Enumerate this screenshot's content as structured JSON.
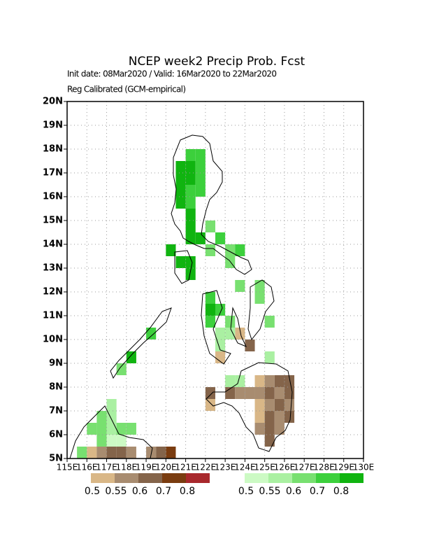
{
  "chart_data": {
    "type": "map",
    "title": "NCEP week2 Precip Prob. Fcst",
    "subtitle": "Init date: 08Mar2020 / Valid: 16Mar2020 to 22Mar2020",
    "subtitle2": "Reg Calibrated (GCM-empirical)",
    "xlim": [
      115,
      130
    ],
    "ylim": [
      5,
      20
    ],
    "cell_size": 0.5,
    "grid": true,
    "xticks": [
      {
        "value": 115,
        "label": "115E"
      },
      {
        "value": 116,
        "label": "116E"
      },
      {
        "value": 117,
        "label": "117E"
      },
      {
        "value": 118,
        "label": "118E"
      },
      {
        "value": 119,
        "label": "119E"
      },
      {
        "value": 120,
        "label": "120E"
      },
      {
        "value": 121,
        "label": "121E"
      },
      {
        "value": 122,
        "label": "122E"
      },
      {
        "value": 123,
        "label": "123E"
      },
      {
        "value": 124,
        "label": "124E"
      },
      {
        "value": 125,
        "label": "125E"
      },
      {
        "value": 126,
        "label": "126E"
      },
      {
        "value": 127,
        "label": "127E"
      },
      {
        "value": 128,
        "label": "128E"
      },
      {
        "value": 129,
        "label": "129E"
      },
      {
        "value": 130,
        "label": "130E"
      }
    ],
    "yticks": [
      {
        "value": 5,
        "label": "5N"
      },
      {
        "value": 6,
        "label": "6N"
      },
      {
        "value": 7,
        "label": "7N"
      },
      {
        "value": 8,
        "label": "8N"
      },
      {
        "value": 9,
        "label": "9N"
      },
      {
        "value": 10,
        "label": "10N"
      },
      {
        "value": 11,
        "label": "11N"
      },
      {
        "value": 12,
        "label": "12N"
      },
      {
        "value": 13,
        "label": "13N"
      },
      {
        "value": 14,
        "label": "14N"
      },
      {
        "value": 15,
        "label": "15N"
      },
      {
        "value": 16,
        "label": "16N"
      },
      {
        "value": 17,
        "label": "17N"
      },
      {
        "value": 18,
        "label": "18N"
      },
      {
        "value": 19,
        "label": "19N"
      },
      {
        "value": 20,
        "label": "20N"
      }
    ],
    "below_levels": [
      0.5,
      0.55,
      0.6,
      0.7,
      0.8
    ],
    "below_colors": [
      "#d9b787",
      "#a88c70",
      "#84644a",
      "#7a3c10",
      "#a8282c"
    ],
    "above_levels": [
      0.5,
      0.55,
      0.6,
      0.7,
      0.8
    ],
    "above_colors": [
      "#ccfac4",
      "#aaf0a2",
      "#78e070",
      "#3cd03c",
      "#10b410"
    ],
    "above_cells": [
      [
        121.0,
        17.5,
        0.7
      ],
      [
        121.5,
        17.5,
        0.7
      ],
      [
        120.5,
        17.0,
        0.8
      ],
      [
        121.0,
        17.0,
        0.8
      ],
      [
        121.5,
        17.0,
        0.7
      ],
      [
        120.5,
        16.5,
        0.8
      ],
      [
        121.0,
        16.5,
        0.8
      ],
      [
        121.5,
        16.5,
        0.7
      ],
      [
        120.5,
        16.0,
        0.8
      ],
      [
        121.0,
        16.0,
        0.7
      ],
      [
        121.5,
        16.0,
        0.7
      ],
      [
        120.5,
        15.5,
        0.8
      ],
      [
        121.0,
        15.5,
        0.7
      ],
      [
        121.0,
        15.0,
        0.8
      ],
      [
        121.0,
        14.5,
        0.8
      ],
      [
        121.0,
        14.0,
        0.8
      ],
      [
        121.5,
        14.0,
        0.8
      ],
      [
        122.0,
        14.5,
        0.6
      ],
      [
        122.5,
        14.0,
        0.7
      ],
      [
        120.0,
        13.5,
        0.8
      ],
      [
        120.5,
        13.0,
        0.8
      ],
      [
        121.0,
        13.0,
        0.8
      ],
      [
        121.0,
        12.5,
        0.8
      ],
      [
        122.0,
        13.5,
        0.6
      ],
      [
        123.0,
        13.5,
        0.6
      ],
      [
        123.5,
        13.5,
        0.7
      ],
      [
        123.0,
        13.0,
        0.6
      ],
      [
        123.5,
        12.0,
        0.6
      ],
      [
        124.5,
        12.0,
        0.6
      ],
      [
        124.5,
        11.5,
        0.6
      ],
      [
        122.0,
        11.5,
        0.7
      ],
      [
        122.0,
        11.0,
        0.8
      ],
      [
        122.5,
        11.0,
        0.7
      ],
      [
        122.0,
        10.5,
        0.7
      ],
      [
        123.0,
        10.5,
        0.6
      ],
      [
        125.0,
        10.5,
        0.6
      ],
      [
        122.5,
        10.0,
        0.55
      ],
      [
        123.0,
        10.0,
        0.55
      ],
      [
        122.5,
        9.5,
        0.55
      ],
      [
        125.0,
        9.0,
        0.55
      ],
      [
        118.0,
        9.0,
        0.8
      ],
      [
        117.5,
        8.5,
        0.6
      ],
      [
        119.0,
        10.0,
        0.7
      ],
      [
        123.0,
        8.0,
        0.55
      ],
      [
        123.5,
        8.0,
        0.55
      ],
      [
        116.5,
        6.5,
        0.6
      ],
      [
        117.0,
        6.5,
        0.55
      ],
      [
        117.0,
        7.0,
        0.55
      ],
      [
        116.0,
        6.0,
        0.6
      ],
      [
        116.5,
        6.0,
        0.6
      ],
      [
        117.0,
        6.0,
        0.55
      ],
      [
        117.5,
        6.0,
        0.6
      ],
      [
        118.0,
        6.0,
        0.6
      ],
      [
        116.5,
        5.5,
        0.6
      ],
      [
        117.0,
        5.5,
        0.5
      ],
      [
        117.5,
        5.5,
        0.5
      ],
      [
        115.5,
        5.0,
        0.6
      ]
    ],
    "below_cells": [
      [
        122.5,
        9.0,
        0.5
      ],
      [
        124.0,
        9.5,
        0.6
      ],
      [
        123.5,
        10.0,
        0.5
      ],
      [
        124.5,
        8.0,
        0.5
      ],
      [
        125.0,
        8.0,
        0.55
      ],
      [
        125.5,
        8.0,
        0.6
      ],
      [
        126.0,
        8.0,
        0.6
      ],
      [
        124.0,
        7.5,
        0.55
      ],
      [
        124.5,
        7.5,
        0.55
      ],
      [
        125.0,
        7.5,
        0.6
      ],
      [
        125.5,
        7.5,
        0.55
      ],
      [
        126.0,
        7.5,
        0.6
      ],
      [
        124.5,
        7.0,
        0.5
      ],
      [
        125.0,
        7.0,
        0.55
      ],
      [
        125.5,
        7.0,
        0.6
      ],
      [
        126.0,
        7.0,
        0.55
      ],
      [
        124.5,
        6.5,
        0.5
      ],
      [
        125.0,
        6.5,
        0.6
      ],
      [
        125.5,
        6.5,
        0.55
      ],
      [
        126.0,
        6.5,
        0.6
      ],
      [
        124.5,
        6.0,
        0.55
      ],
      [
        125.0,
        6.0,
        0.6
      ],
      [
        125.5,
        6.0,
        0.55
      ],
      [
        125.0,
        5.5,
        0.6
      ],
      [
        122.0,
        7.5,
        0.6
      ],
      [
        122.0,
        7.0,
        0.5
      ],
      [
        123.0,
        7.5,
        0.6
      ],
      [
        123.5,
        7.5,
        0.55
      ],
      [
        116.0,
        5.0,
        0.5
      ],
      [
        116.5,
        5.0,
        0.55
      ],
      [
        117.0,
        5.0,
        0.6
      ],
      [
        117.5,
        5.0,
        0.6
      ],
      [
        118.0,
        5.0,
        0.55
      ],
      [
        119.0,
        5.0,
        0.55
      ],
      [
        119.5,
        5.0,
        0.6
      ],
      [
        120.0,
        5.0,
        0.7
      ]
    ]
  }
}
